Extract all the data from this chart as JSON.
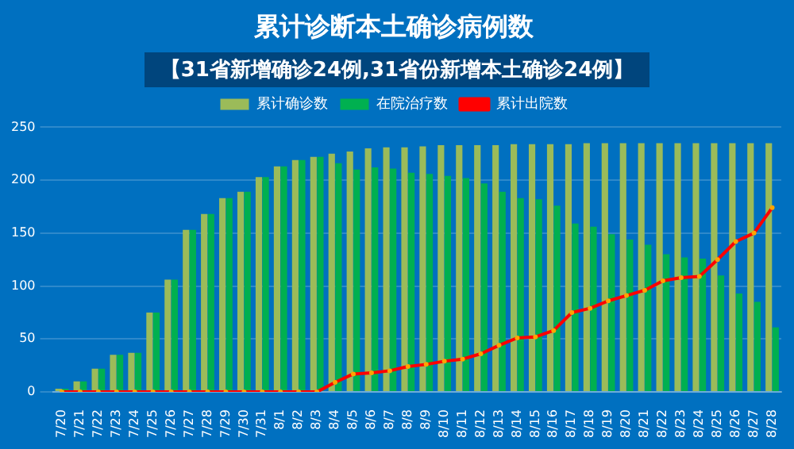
{
  "chart_data": {
    "type": "bar",
    "title": "累计诊断本土确诊病例数",
    "annotations": [
      "【31省新增确诊24例,31省份新增本土确诊24例】"
    ],
    "categories": [
      "7/20",
      "7/21",
      "7/22",
      "7/23",
      "7/24",
      "7/25",
      "7/26",
      "7/27",
      "7/28",
      "7/29",
      "7/30",
      "7/31",
      "8/1",
      "8/2",
      "8/3",
      "8/4",
      "8/5",
      "8/6",
      "8/7",
      "8/8",
      "8/9",
      "8/10",
      "8/11",
      "8/12",
      "8/13",
      "8/14",
      "8/15",
      "8/16",
      "8/17",
      "8/18",
      "8/19",
      "8/20",
      "8/21",
      "8/22",
      "8/23",
      "8/24",
      "8/25",
      "8/26",
      "8/27",
      "8/28"
    ],
    "series": [
      {
        "name": "累计确诊数",
        "color": "#9bbb59",
        "values": [
          3,
          10,
          22,
          35,
          37,
          75,
          106,
          153,
          168,
          183,
          189,
          203,
          213,
          219,
          222,
          225,
          227,
          230,
          231,
          231,
          232,
          233,
          233,
          233,
          233,
          234,
          234,
          234,
          234,
          235,
          235,
          235,
          235,
          235,
          235,
          235,
          235,
          235,
          235,
          235
        ]
      },
      {
        "name": "在院治疗数",
        "color": "#00b050",
        "values": [
          3,
          10,
          22,
          35,
          37,
          75,
          106,
          153,
          168,
          183,
          189,
          203,
          213,
          219,
          222,
          216,
          210,
          212,
          211,
          207,
          206,
          204,
          202,
          197,
          189,
          183,
          182,
          176,
          159,
          156,
          149,
          144,
          139,
          130,
          127,
          126,
          110,
          93,
          85,
          61
        ]
      },
      {
        "name": "累计出院数",
        "type": "line",
        "color": "#ff0000",
        "values": [
          0,
          0,
          0,
          0,
          0,
          0,
          0,
          0,
          0,
          0,
          0,
          0,
          0,
          0,
          0,
          9,
          17,
          18,
          20,
          24,
          26,
          29,
          31,
          36,
          44,
          51,
          52,
          58,
          75,
          79,
          86,
          91,
          96,
          105,
          108,
          109,
          125,
          142,
          150,
          174
        ]
      }
    ],
    "ylim": [
      0,
      250
    ],
    "yticks": [
      0,
      50,
      100,
      150,
      200,
      250
    ],
    "grid": "y",
    "legend": "top",
    "marker": "circle",
    "line_style": "solid"
  }
}
